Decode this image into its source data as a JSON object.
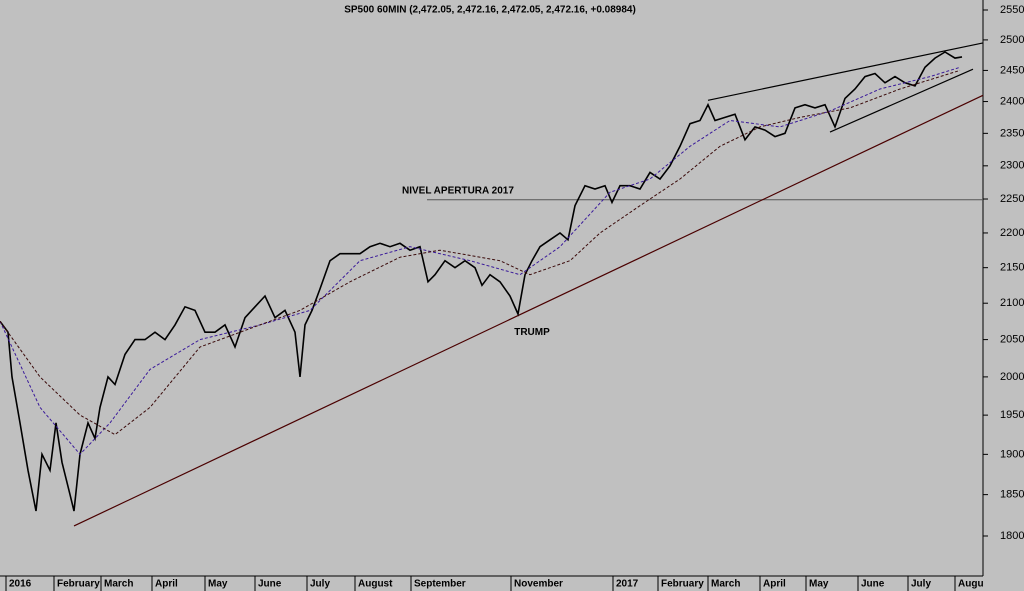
{
  "chart_data": {
    "type": "line",
    "title": "SP500 60MIN (2,472.05, 2,472.16, 2,472.05, 2,472.16, +0.08984)",
    "log_scale": true,
    "grid": false,
    "xlim": [
      0,
      983
    ],
    "ylim": [
      1780,
      2565
    ],
    "yticks": [
      1800,
      1850,
      1900,
      1950,
      2000,
      2050,
      2100,
      2150,
      2200,
      2250,
      2300,
      2350,
      2400,
      2450,
      2500,
      2550
    ],
    "xticks": [
      {
        "value": 6,
        "label": "2016"
      },
      {
        "value": 54,
        "label": "February"
      },
      {
        "value": 101,
        "label": "March"
      },
      {
        "value": 152,
        "label": "April"
      },
      {
        "value": 205,
        "label": "May"
      },
      {
        "value": 255,
        "label": "June"
      },
      {
        "value": 307,
        "label": "July"
      },
      {
        "value": 355,
        "label": "August"
      },
      {
        "value": 411,
        "label": "September"
      },
      {
        "value": 511,
        "label": "November"
      },
      {
        "value": 613,
        "label": "2017"
      },
      {
        "value": 658,
        "label": "February"
      },
      {
        "value": 708,
        "label": "March"
      },
      {
        "value": 760,
        "label": "April"
      },
      {
        "value": 806,
        "label": "May"
      },
      {
        "value": 858,
        "label": "June"
      },
      {
        "value": 908,
        "label": "July"
      },
      {
        "value": 955,
        "label": "Augu"
      }
    ],
    "series": [
      {
        "color": "#000000",
        "style": "solid",
        "x": [
          0,
          8,
          12,
          20,
          28,
          36,
          42,
          50,
          56,
          62,
          70,
          74,
          80,
          88,
          95,
          100,
          108,
          115,
          125,
          135,
          145,
          155,
          165,
          175,
          185,
          195,
          205,
          215,
          225,
          235,
          245,
          255,
          265,
          275,
          285,
          295,
          300,
          305,
          312,
          320,
          330,
          340,
          350,
          360,
          370,
          380,
          390,
          400,
          410,
          420,
          428,
          435,
          445,
          455,
          465,
          475,
          482,
          490,
          500,
          510,
          518,
          525,
          532,
          540,
          550,
          560,
          568,
          575,
          585,
          595,
          605,
          612,
          620,
          630,
          640,
          650,
          660,
          670,
          680,
          690,
          700,
          708,
          715,
          725,
          735,
          745,
          755,
          765,
          775,
          785,
          795,
          805,
          815,
          825,
          835,
          845,
          855,
          865,
          875,
          885,
          895,
          905,
          915,
          925,
          935,
          945,
          955,
          962
        ],
        "values": [
          2075,
          2060,
          2000,
          1940,
          1880,
          1830,
          1900,
          1880,
          1940,
          1890,
          1850,
          1830,
          1900,
          1940,
          1920,
          1960,
          2000,
          1990,
          2030,
          2050,
          2050,
          2060,
          2050,
          2070,
          2095,
          2090,
          2060,
          2060,
          2070,
          2040,
          2080,
          2095,
          2110,
          2080,
          2090,
          2060,
          2000,
          2070,
          2090,
          2120,
          2160,
          2170,
          2170,
          2170,
          2180,
          2185,
          2180,
          2185,
          2175,
          2180,
          2130,
          2140,
          2160,
          2150,
          2160,
          2150,
          2125,
          2140,
          2130,
          2110,
          2085,
          2140,
          2160,
          2180,
          2190,
          2200,
          2190,
          2240,
          2270,
          2265,
          2270,
          2245,
          2270,
          2270,
          2265,
          2290,
          2280,
          2300,
          2330,
          2365,
          2370,
          2395,
          2370,
          2375,
          2380,
          2340,
          2360,
          2355,
          2345,
          2350,
          2390,
          2395,
          2390,
          2395,
          2360,
          2405,
          2420,
          2440,
          2445,
          2430,
          2440,
          2430,
          2425,
          2455,
          2470,
          2480,
          2470,
          2472
        ]
      },
      {
        "color": "#3a1a9a",
        "style": "dashed",
        "x": [
          0,
          40,
          80,
          110,
          150,
          200,
          260,
          310,
          360,
          410,
          470,
          520,
          560,
          610,
          650,
          690,
          730,
          780,
          830,
          880,
          930,
          960
        ],
        "values": [
          2075,
          1960,
          1900,
          1940,
          2010,
          2050,
          2070,
          2090,
          2160,
          2180,
          2160,
          2140,
          2180,
          2260,
          2280,
          2330,
          2370,
          2360,
          2385,
          2420,
          2440,
          2455
        ]
      },
      {
        "color": "#3a0a0a",
        "style": "dashed",
        "x": [
          0,
          40,
          80,
          115,
          150,
          200,
          260,
          300,
          350,
          400,
          440,
          500,
          530,
          570,
          600,
          640,
          680,
          720,
          760,
          800,
          850,
          900,
          960
        ],
        "values": [
          2075,
          2000,
          1950,
          1925,
          1960,
          2040,
          2070,
          2090,
          2130,
          2165,
          2175,
          2160,
          2140,
          2160,
          2200,
          2240,
          2280,
          2330,
          2360,
          2375,
          2390,
          2420,
          2450
        ]
      }
    ],
    "trendlines": [
      {
        "color": "#4a0000",
        "x": [
          74,
          983
        ],
        "values": [
          1812,
          2410
        ]
      },
      {
        "color": "#000000",
        "x": [
          708,
          983
        ],
        "values": [
          2402,
          2495
        ]
      },
      {
        "color": "#000000",
        "x": [
          830,
          973
        ],
        "values": [
          2352,
          2452
        ]
      }
    ],
    "reference_line": {
      "value": 2249,
      "x": [
        427,
        983
      ],
      "label": "NIVEL APERTURA 2017"
    },
    "annotations": [
      {
        "text": "TRUMP",
        "x": 532,
        "value": 2078
      }
    ]
  }
}
